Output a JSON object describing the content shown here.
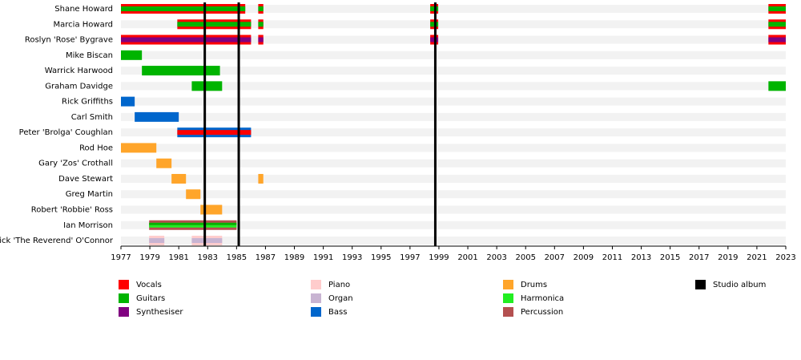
{
  "chart_data": {
    "type": "timeline",
    "xlim": [
      1977,
      2023
    ],
    "xticks": [
      1977,
      1979,
      1981,
      1983,
      1985,
      1987,
      1989,
      1991,
      1993,
      1995,
      1997,
      1999,
      2001,
      2003,
      2005,
      2007,
      2009,
      2011,
      2013,
      2015,
      2017,
      2019,
      2021,
      2023
    ],
    "series": [
      {
        "name": "Vocals",
        "color": "#ff0000"
      },
      {
        "name": "Guitars",
        "color": "#00b400"
      },
      {
        "name": "Synthesiser",
        "color": "#800080"
      },
      {
        "name": "Piano",
        "color": "#ffcccc"
      },
      {
        "name": "Organ",
        "color": "#c8b4d2"
      },
      {
        "name": "Bass",
        "color": "#0066cc"
      },
      {
        "name": "Drums",
        "color": "#ffa52a"
      },
      {
        "name": "Harmonica",
        "color": "#22ee22"
      },
      {
        "name": "Percussion",
        "color": "#b45050"
      }
    ],
    "albums": {
      "name": "Studio album",
      "color": "#000000",
      "values": [
        1982.8,
        1985.15,
        1998.75
      ]
    },
    "rows": [
      {
        "name": "Shane Howard",
        "roles": [
          "Vocals",
          "Guitars"
        ],
        "periods": [
          [
            1977,
            1985.6
          ],
          [
            1986.5,
            1986.85
          ],
          [
            1998.4,
            1998.95
          ],
          [
            2021.8,
            2023
          ]
        ]
      },
      {
        "name": "Marcia Howard",
        "roles": [
          "Vocals",
          "Guitars"
        ],
        "periods": [
          [
            1980.9,
            1986
          ],
          [
            1986.5,
            1986.85
          ],
          [
            1998.4,
            1998.95
          ],
          [
            2021.8,
            2023
          ]
        ]
      },
      {
        "name": "Roslyn 'Rose' Bygrave",
        "roles": [
          "Vocals",
          "Synthesiser"
        ],
        "periods": [
          [
            1977,
            1986
          ],
          [
            1986.5,
            1986.85
          ],
          [
            1998.4,
            1998.95
          ],
          [
            2021.8,
            2023
          ]
        ]
      },
      {
        "name": "Mike Biscan",
        "roles": [
          "Guitars"
        ],
        "periods": [
          [
            1977,
            1978.45
          ]
        ]
      },
      {
        "name": "Warrick Harwood",
        "roles": [
          "Guitars"
        ],
        "periods": [
          [
            1978.45,
            1983.85
          ]
        ]
      },
      {
        "name": "Graham Davidge",
        "roles": [
          "Guitars"
        ],
        "periods": [
          [
            1981.9,
            1984
          ],
          [
            2021.8,
            2023
          ]
        ]
      },
      {
        "name": "Rick Griffiths",
        "roles": [
          "Bass"
        ],
        "periods": [
          [
            1977,
            1977.95
          ]
        ]
      },
      {
        "name": "Carl Smith",
        "roles": [
          "Bass"
        ],
        "periods": [
          [
            1977.95,
            1981
          ]
        ]
      },
      {
        "name": "Peter 'Brolga' Coughlan",
        "roles": [
          "Bass",
          "Vocals"
        ],
        "periods": [
          [
            1980.9,
            1986
          ]
        ]
      },
      {
        "name": "Rod Hoe",
        "roles": [
          "Drums"
        ],
        "periods": [
          [
            1977,
            1979.45
          ]
        ]
      },
      {
        "name": "Gary 'Zos' Crothall",
        "roles": [
          "Drums"
        ],
        "periods": [
          [
            1979.45,
            1980.5
          ]
        ]
      },
      {
        "name": "Dave Stewart",
        "roles": [
          "Drums"
        ],
        "periods": [
          [
            1980.5,
            1981.5
          ],
          [
            1986.5,
            1986.85
          ]
        ]
      },
      {
        "name": "Greg Martin",
        "roles": [
          "Drums"
        ],
        "periods": [
          [
            1981.5,
            1982.5
          ]
        ]
      },
      {
        "name": "Robert 'Robbie' Ross",
        "roles": [
          "Drums"
        ],
        "periods": [
          [
            1982.5,
            1984
          ]
        ]
      },
      {
        "name": "Ian Morrison",
        "roles": [
          "Percussion",
          "Guitars",
          "Harmonica"
        ],
        "periods": [
          [
            1978.95,
            1985
          ]
        ]
      },
      {
        "name": "Mick 'The Reverend' O'Connor",
        "roles": [
          "Piano",
          "Organ"
        ],
        "periods": [
          [
            1978.95,
            1980
          ],
          [
            1981.9,
            1984
          ]
        ]
      }
    ]
  }
}
